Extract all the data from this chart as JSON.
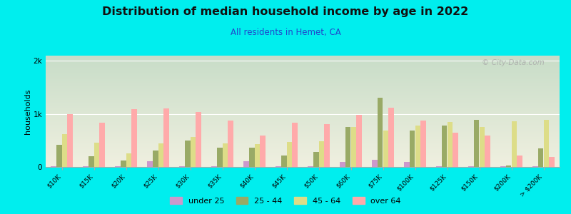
{
  "title": "Distribution of median household income by age in 2022",
  "subtitle": "All residents in Hemet, CA",
  "ylabel": "households",
  "watermark": "© City-Data.com",
  "categories": [
    "$10K",
    "$15K",
    "$20K",
    "$25K",
    "$30K",
    "$35K",
    "$40K",
    "$45K",
    "$50K",
    "$60K",
    "$75K",
    "$100K",
    "$125K",
    "$150K",
    "$200K",
    "> $200K"
  ],
  "age_groups": [
    "under 25",
    "25 - 44",
    "45 - 64",
    "over 64"
  ],
  "bar_colors": {
    "under 25": "#cc99cc",
    "25 - 44": "#99aa66",
    "45 - 64": "#dddd88",
    "over 64": "#ffaaaa"
  },
  "data": {
    "under 25": [
      15,
      10,
      10,
      110,
      10,
      10,
      110,
      20,
      20,
      90,
      130,
      100,
      10,
      10,
      10,
      10
    ],
    "25 - 44": [
      420,
      200,
      120,
      310,
      500,
      360,
      360,
      220,
      280,
      760,
      1300,
      690,
      780,
      890,
      30,
      350
    ],
    "45 - 64": [
      620,
      460,
      250,
      440,
      570,
      440,
      430,
      470,
      490,
      750,
      690,
      780,
      850,
      760,
      860,
      890
    ],
    "over 64": [
      990,
      840,
      1090,
      1100,
      1040,
      870,
      590,
      840,
      810,
      980,
      1120,
      870,
      640,
      590,
      210,
      185
    ]
  },
  "ylim": [
    0,
    2100
  ],
  "yticks": [
    0,
    1000,
    2000
  ],
  "ytick_labels": [
    "0",
    "1k",
    "2k"
  ],
  "figure_bg": "#00eeee",
  "plot_bg_top": "#c8ddc8",
  "plot_bg_bottom": "#f0f0e0"
}
